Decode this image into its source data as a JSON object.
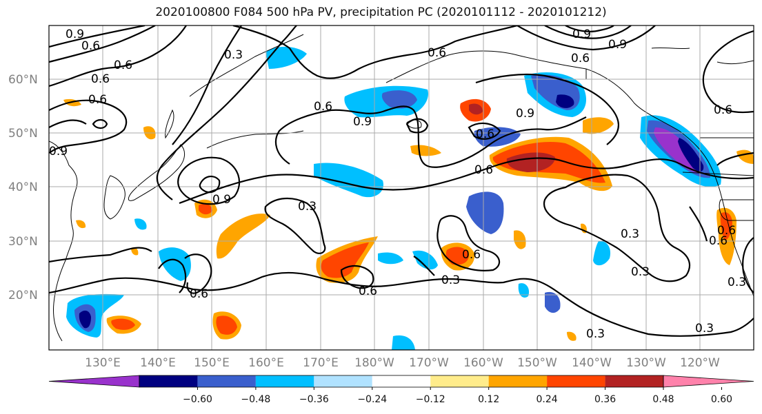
{
  "title": "2020100800 F084 500 hPa PV, precipitation PC (2020101112 - 2020101212)",
  "lat_labels": [
    "20°N",
    "30°N",
    "40°N",
    "50°N",
    "60°N"
  ],
  "lon_labels": [
    "130°E",
    "140°E",
    "150°E",
    "160°E",
    "170°E",
    "180°W",
    "170°W",
    "160°W",
    "150°W",
    "140°W",
    "130°W",
    "120°W"
  ],
  "colorbar": {
    "ticks": [
      "−0.60",
      "−0.48",
      "−0.36",
      "−0.24",
      "−0.12",
      "0.12",
      "0.24",
      "0.36",
      "0.48",
      "0.60"
    ],
    "colors": [
      "#9932cc",
      "#000080",
      "#3a5fcd",
      "#00bfff",
      "#b0e2ff",
      "#ffffff",
      "#ffec8b",
      "#ffa500",
      "#ff4500",
      "#b22222",
      "#ff82ab"
    ]
  },
  "contour_labels": [
    "0.9",
    "0.6",
    "0.6",
    "0.6",
    "0.9",
    "0.3",
    "0.6",
    "0.6",
    "0.9",
    "0.6",
    "0.9",
    "0.6",
    "0.9",
    "0.6",
    "0.6",
    "0.9",
    "0.3",
    "0.6",
    "0.3",
    "0.6",
    "0.3",
    "0.3",
    "0.3",
    "0.3",
    "0.3",
    "0.6",
    "0.6",
    "0.9",
    "0.6",
    "0.6"
  ]
}
